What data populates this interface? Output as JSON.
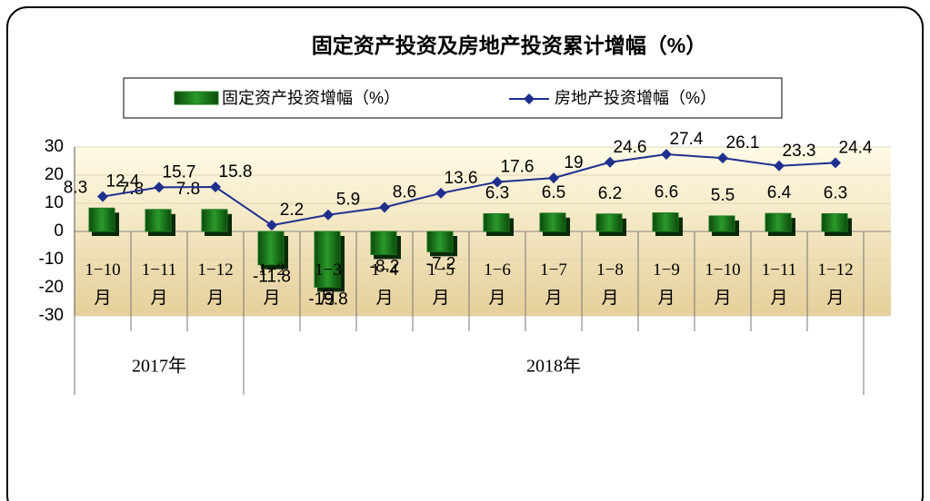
{
  "chart_data": {
    "type": "bar-line",
    "title": "固定资产投资及房地产投资累计增幅（%）",
    "categories": [
      "1−10\n月",
      "1−11\n月",
      "1−12\n月",
      "1−2\n月",
      "1−3\n月",
      "1−4\n月",
      "1−5\n月",
      "1−6\n月",
      "1−7\n月",
      "1−8\n月",
      "1−9\n月",
      "1−10\n月",
      "1−11\n月",
      "1−12\n月"
    ],
    "group_labels": [
      "2017年",
      "2018年"
    ],
    "series": [
      {
        "name": "固定资产投资增幅（%）",
        "type": "bar",
        "color": "#1a7a1a",
        "values": [
          8.3,
          7.8,
          7.8,
          -11.8,
          -19.8,
          -8.2,
          -7.2,
          6.3,
          6.5,
          6.2,
          6.6,
          5.5,
          6.4,
          6.3
        ]
      },
      {
        "name": "房地产投资增幅（%）",
        "type": "line",
        "color": "#1f2f8f",
        "values": [
          12.4,
          15.7,
          15.8,
          2.2,
          5.9,
          8.6,
          13.6,
          17.6,
          19,
          24.6,
          27.4,
          26.1,
          23.3,
          24.4
        ]
      }
    ],
    "ylim": [
      -30,
      30
    ],
    "yticks": [
      -30,
      -20,
      -10,
      0,
      10,
      20,
      30
    ]
  }
}
